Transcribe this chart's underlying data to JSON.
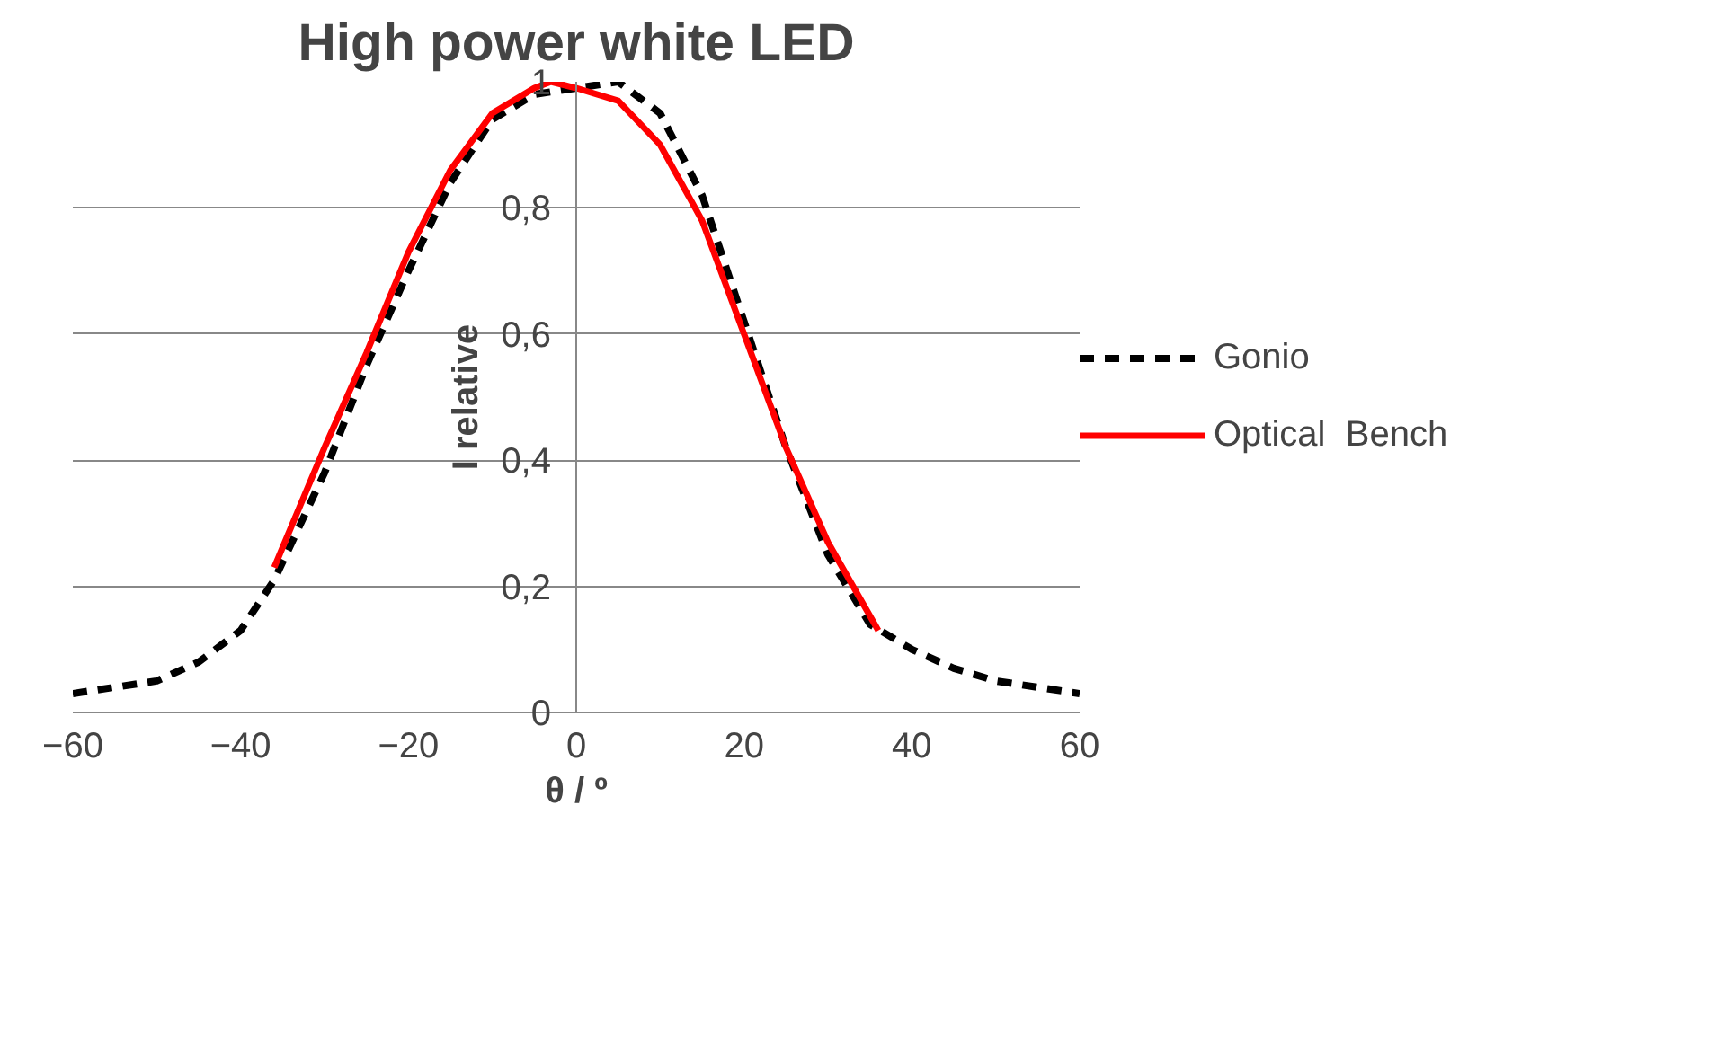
{
  "chart_data": {
    "type": "line",
    "title": "High power white LED",
    "xlabel": "θ / º",
    "ylabel": "I relative",
    "xlim": [
      -60,
      60
    ],
    "ylim": [
      0,
      1
    ],
    "xticks": [
      -60,
      -40,
      -20,
      0,
      20,
      40,
      60
    ],
    "yticks": [
      0,
      {
        "value": 0.2,
        "label": "0,2"
      },
      {
        "value": 0.4,
        "label": "0,4"
      },
      {
        "value": 0.6,
        "label": "0,6"
      },
      {
        "value": 0.8,
        "label": "0,8"
      },
      1
    ],
    "grid": "y",
    "legend": "right",
    "series": [
      {
        "name": "Gonio",
        "color": "#000000",
        "line_style": "dashed",
        "x": [
          -60,
          -50,
          -45,
          -40,
          -36,
          -30,
          -25,
          -20,
          -15,
          -10,
          -5,
          0,
          5,
          10,
          15,
          20,
          25,
          30,
          35,
          40,
          45,
          50,
          60
        ],
        "values": [
          0.03,
          0.05,
          0.08,
          0.13,
          0.21,
          0.38,
          0.55,
          0.7,
          0.84,
          0.94,
          0.98,
          0.99,
          1.0,
          0.95,
          0.82,
          0.62,
          0.42,
          0.25,
          0.14,
          0.1,
          0.07,
          0.05,
          0.03
        ]
      },
      {
        "name": "Optical  Bench",
        "color": "#ff0000",
        "line_style": "solid",
        "x": [
          -36,
          -30,
          -25,
          -20,
          -15,
          -10,
          -5,
          -3,
          0,
          5,
          10,
          15,
          20,
          25,
          30,
          36
        ],
        "values": [
          0.23,
          0.42,
          0.57,
          0.73,
          0.86,
          0.95,
          0.99,
          1.0,
          0.99,
          0.97,
          0.9,
          0.78,
          0.6,
          0.42,
          0.27,
          0.13
        ]
      }
    ]
  }
}
